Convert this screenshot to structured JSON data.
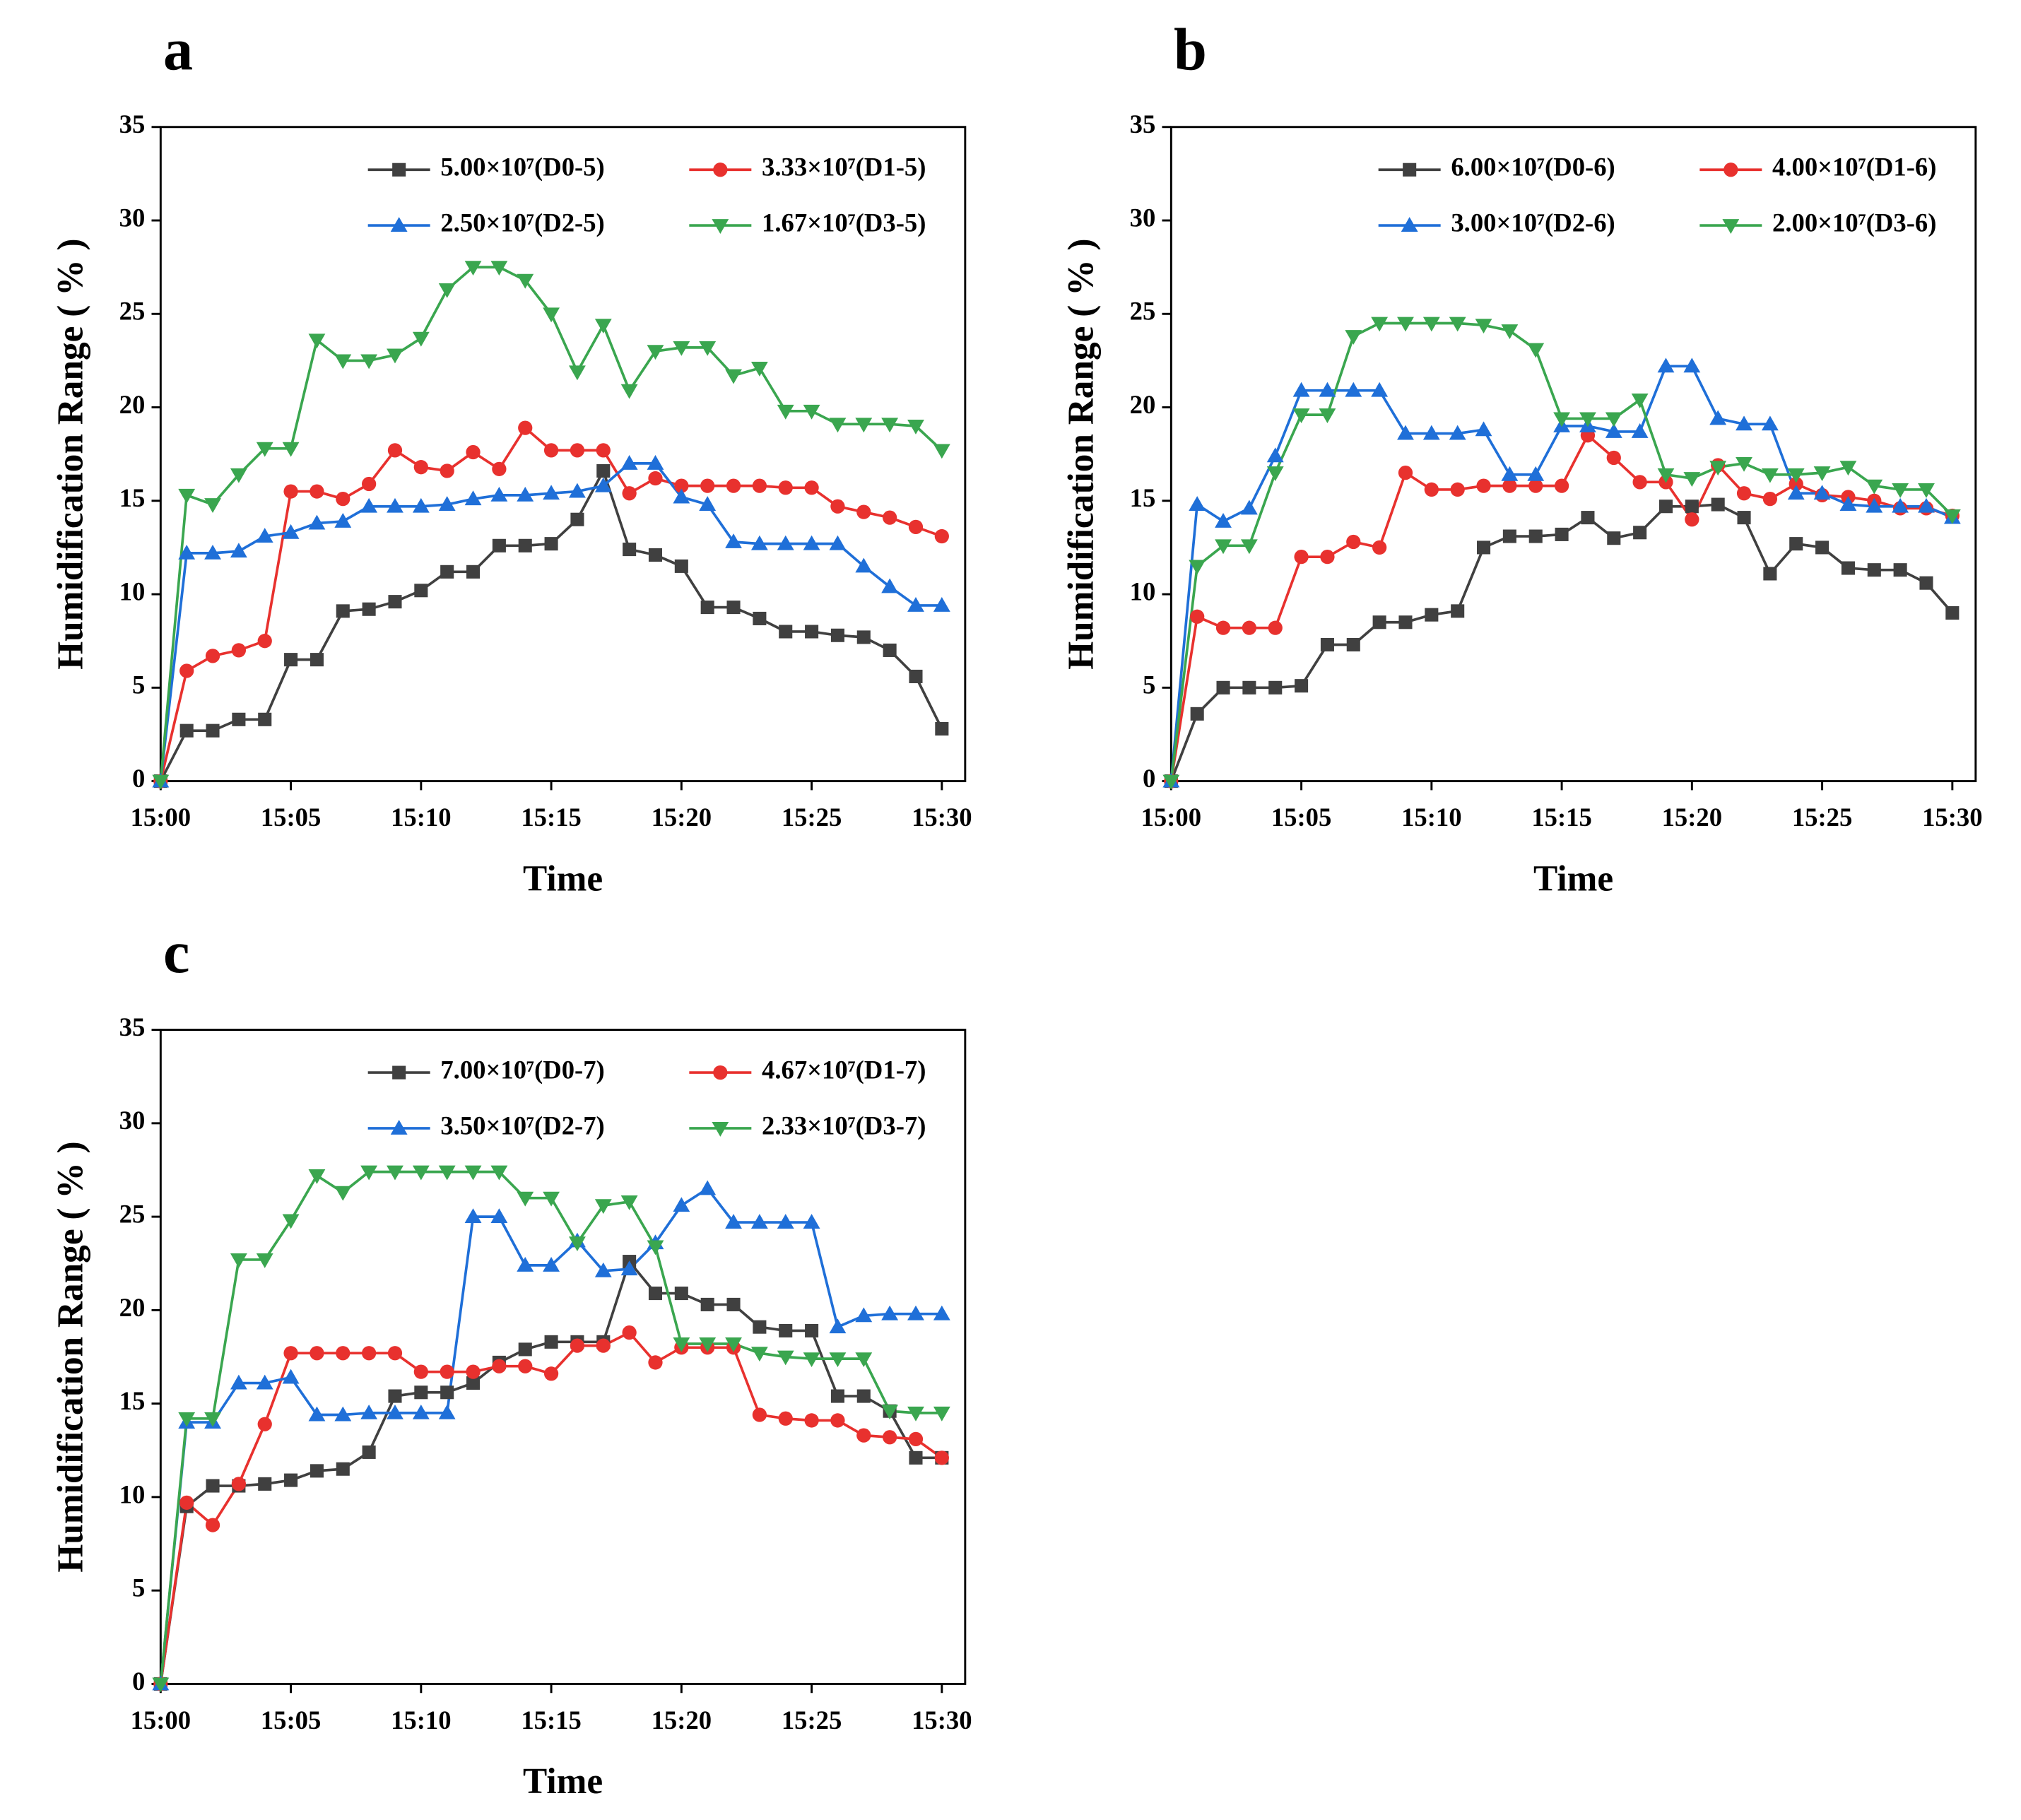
{
  "chart_data": [
    {
      "type": "line",
      "panel": "a",
      "x_label": "Time",
      "y_label": "Humidification Range ( % )",
      "categories": [
        "15:00",
        null,
        null,
        null,
        null,
        "15:05",
        null,
        null,
        null,
        null,
        "15:10",
        null,
        null,
        null,
        null,
        "15:15",
        null,
        null,
        null,
        null,
        "15:20",
        null,
        null,
        null,
        null,
        "15:25",
        null,
        null,
        null,
        null,
        "15:30"
      ],
      "ylim": [
        0,
        35
      ],
      "yticks": [
        0,
        5,
        10,
        15,
        20,
        25,
        30,
        35
      ],
      "grid": false,
      "legend": "upper right",
      "series": [
        {
          "name": "5.00×10⁷(D0-5)",
          "color": "#404040",
          "marker": "square",
          "values": [
            0,
            2.7,
            2.7,
            3.3,
            3.3,
            6.5,
            6.5,
            9.1,
            9.2,
            9.6,
            10.2,
            11.2,
            11.2,
            12.6,
            12.6,
            12.7,
            14.0,
            16.6,
            12.4,
            12.1,
            11.5,
            9.3,
            9.3,
            8.7,
            8.0,
            8.0,
            7.8,
            7.7,
            7.0,
            5.6,
            2.8
          ]
        },
        {
          "name": "3.33×10⁷(D1-5)",
          "color": "#e8312e",
          "marker": "circle",
          "values": [
            0,
            5.9,
            6.7,
            7.0,
            7.5,
            15.5,
            15.5,
            15.1,
            15.9,
            17.7,
            16.8,
            16.6,
            17.6,
            16.7,
            18.9,
            17.7,
            17.7,
            17.7,
            15.4,
            16.2,
            15.8,
            15.8,
            15.8,
            15.8,
            15.7,
            15.7,
            14.7,
            14.4,
            14.1,
            13.6,
            13.1
          ]
        },
        {
          "name": "2.50×10⁷(D2-5)",
          "color": "#1f6fd8",
          "marker": "triangle-up",
          "values": [
            0,
            12.2,
            12.2,
            12.3,
            13.1,
            13.3,
            13.8,
            13.9,
            14.7,
            14.7,
            14.7,
            14.8,
            15.1,
            15.3,
            15.3,
            15.4,
            15.5,
            15.8,
            17.0,
            17.0,
            15.2,
            14.8,
            12.8,
            12.7,
            12.7,
            12.7,
            12.7,
            11.5,
            10.4,
            9.4,
            9.4
          ]
        },
        {
          "name": "1.67×10⁷(D3-5)",
          "color": "#3aa64f",
          "marker": "triangle-down",
          "values": [
            0,
            15.3,
            14.8,
            16.4,
            17.8,
            17.8,
            23.6,
            22.5,
            22.5,
            22.8,
            23.7,
            26.3,
            27.5,
            27.5,
            26.8,
            25.0,
            21.9,
            24.4,
            20.9,
            23.0,
            23.2,
            23.2,
            21.7,
            22.1,
            19.8,
            19.8,
            19.1,
            19.1,
            19.1,
            19.0,
            17.7
          ]
        }
      ]
    },
    {
      "type": "line",
      "panel": "b",
      "x_label": "Time",
      "y_label": "Humidification Range ( % )",
      "categories": [
        "15:00",
        null,
        null,
        null,
        null,
        "15:05",
        null,
        null,
        null,
        null,
        "15:10",
        null,
        null,
        null,
        null,
        "15:15",
        null,
        null,
        null,
        null,
        "15:20",
        null,
        null,
        null,
        null,
        "15:25",
        null,
        null,
        null,
        null,
        "15:30"
      ],
      "ylim": [
        0,
        35
      ],
      "yticks": [
        0,
        5,
        10,
        15,
        20,
        25,
        30,
        35
      ],
      "grid": false,
      "legend": "upper right",
      "series": [
        {
          "name": "6.00×10⁷(D0-6)",
          "color": "#404040",
          "marker": "square",
          "values": [
            0,
            3.6,
            5.0,
            5.0,
            5.0,
            5.1,
            7.3,
            7.3,
            8.5,
            8.5,
            8.9,
            9.1,
            12.5,
            13.1,
            13.1,
            13.2,
            14.1,
            13.0,
            13.3,
            14.7,
            14.7,
            14.8,
            14.1,
            11.1,
            12.7,
            12.5,
            11.4,
            11.3,
            11.3,
            10.6,
            9.0
          ]
        },
        {
          "name": "4.00×10⁷(D1-6)",
          "color": "#e8312e",
          "marker": "circle",
          "values": [
            0,
            8.8,
            8.2,
            8.2,
            8.2,
            12.0,
            12.0,
            12.8,
            12.5,
            16.5,
            15.6,
            15.6,
            15.8,
            15.8,
            15.8,
            15.8,
            18.5,
            17.3,
            16.0,
            16.0,
            14.0,
            16.9,
            15.4,
            15.1,
            15.9,
            15.3,
            15.2,
            15.0,
            14.6,
            14.6,
            14.2
          ]
        },
        {
          "name": "3.00×10⁷(D2-6)",
          "color": "#1f6fd8",
          "marker": "triangle-up",
          "values": [
            0,
            14.8,
            13.9,
            14.6,
            17.4,
            20.9,
            20.9,
            20.9,
            20.9,
            18.6,
            18.6,
            18.6,
            18.8,
            16.4,
            16.4,
            19.0,
            19.0,
            18.7,
            18.7,
            22.2,
            22.2,
            19.4,
            19.1,
            19.1,
            15.4,
            15.4,
            14.8,
            14.7,
            14.7,
            14.7,
            14.1
          ]
        },
        {
          "name": "2.00×10⁷(D3-6)",
          "color": "#3aa64f",
          "marker": "triangle-down",
          "values": [
            0,
            11.5,
            12.6,
            12.6,
            16.5,
            19.6,
            19.6,
            23.8,
            24.5,
            24.5,
            24.5,
            24.5,
            24.4,
            24.1,
            23.1,
            19.4,
            19.4,
            19.4,
            20.4,
            16.4,
            16.2,
            16.8,
            17.0,
            16.4,
            16.4,
            16.5,
            16.8,
            15.8,
            15.6,
            15.6,
            14.2
          ]
        }
      ]
    },
    {
      "type": "line",
      "panel": "c",
      "x_label": "Time",
      "y_label": "Humidification Range ( % )",
      "categories": [
        "15:00",
        null,
        null,
        null,
        null,
        "15:05",
        null,
        null,
        null,
        null,
        "15:10",
        null,
        null,
        null,
        null,
        "15:15",
        null,
        null,
        null,
        null,
        "15:20",
        null,
        null,
        null,
        null,
        "15:25",
        null,
        null,
        null,
        null,
        "15:30"
      ],
      "ylim": [
        0,
        35
      ],
      "yticks": [
        0,
        5,
        10,
        15,
        20,
        25,
        30,
        35
      ],
      "grid": false,
      "legend": "upper right",
      "series": [
        {
          "name": "7.00×10⁷(D0-7)",
          "color": "#404040",
          "marker": "square",
          "values": [
            0,
            9.5,
            10.6,
            10.6,
            10.7,
            10.9,
            11.4,
            11.5,
            12.4,
            15.4,
            15.6,
            15.6,
            16.1,
            17.2,
            17.9,
            18.3,
            18.3,
            18.3,
            22.6,
            20.9,
            20.9,
            20.3,
            20.3,
            19.1,
            18.9,
            18.9,
            15.4,
            15.4,
            14.6,
            12.1,
            12.1
          ]
        },
        {
          "name": "4.67×10⁷(D1-7)",
          "color": "#e8312e",
          "marker": "circle",
          "values": [
            0,
            9.7,
            8.5,
            10.7,
            13.9,
            17.7,
            17.7,
            17.7,
            17.7,
            17.7,
            16.7,
            16.7,
            16.7,
            17.0,
            17.0,
            16.6,
            18.1,
            18.1,
            18.8,
            17.2,
            18.0,
            18.0,
            18.0,
            14.4,
            14.2,
            14.1,
            14.1,
            13.3,
            13.2,
            13.1,
            12.1
          ]
        },
        {
          "name": "3.50×10⁷(D2-7)",
          "color": "#1f6fd8",
          "marker": "triangle-up",
          "values": [
            0,
            14.0,
            14.0,
            16.1,
            16.1,
            16.4,
            14.4,
            14.4,
            14.5,
            14.5,
            14.5,
            14.5,
            25.0,
            25.0,
            22.4,
            22.4,
            23.7,
            22.1,
            22.2,
            23.6,
            25.6,
            26.5,
            24.7,
            24.7,
            24.7,
            24.7,
            19.1,
            19.7,
            19.8,
            19.8,
            19.8
          ]
        },
        {
          "name": "2.33×10⁷(D3-7)",
          "color": "#3aa64f",
          "marker": "triangle-down",
          "values": [
            0,
            14.2,
            14.2,
            22.7,
            22.7,
            24.8,
            27.2,
            26.3,
            27.4,
            27.4,
            27.4,
            27.4,
            27.4,
            27.4,
            26.0,
            26.0,
            23.6,
            25.6,
            25.8,
            23.4,
            18.2,
            18.2,
            18.2,
            17.7,
            17.5,
            17.4,
            17.4,
            17.4,
            14.6,
            14.5,
            14.5
          ]
        }
      ]
    }
  ]
}
